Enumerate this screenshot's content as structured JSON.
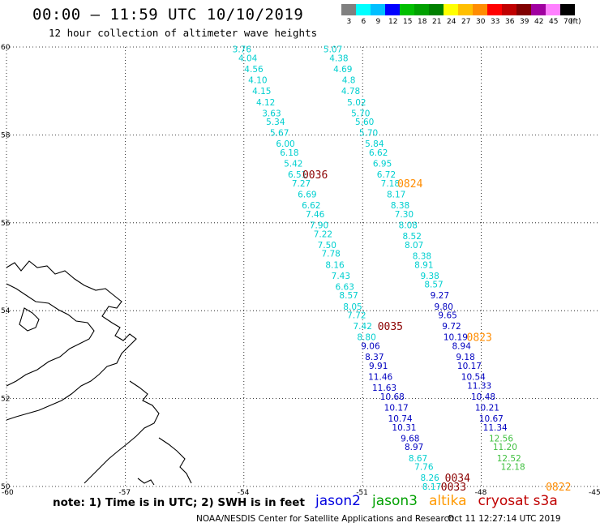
{
  "header": {
    "title": "00:00 – 11:59 UTC 10/10/2019",
    "subtitle": "12 hour collection of altimeter wave heights"
  },
  "color_scale": {
    "unit": "(ft)",
    "colors": [
      "#808080",
      "#00ffff",
      "#00bfff",
      "#0000ff",
      "#00bf00",
      "#00a000",
      "#008000",
      "#ffff00",
      "#ffbf00",
      "#ff8c00",
      "#ff0000",
      "#c00000",
      "#800000",
      "#a000a0",
      "#ff80ff",
      "#000000"
    ],
    "labels": [
      "3",
      "6",
      "9",
      "12",
      "15",
      "18",
      "21",
      "24",
      "27",
      "30",
      "33",
      "36",
      "39",
      "42",
      "45",
      "70"
    ]
  },
  "axes": {
    "lat_labels": [
      "60",
      "58",
      "56",
      "54",
      "52",
      "50"
    ],
    "lon_labels": [
      "-60",
      "-57",
      "-54",
      "-51",
      "-48",
      "-45"
    ]
  },
  "tracks": [
    {
      "color": "#00cfcf",
      "readings": [
        {
          "text": "3.76",
          "lat": 59.95,
          "lon": -54.05
        },
        {
          "text": "4.04",
          "lat": 59.75,
          "lon": -53.9
        },
        {
          "text": "4.56",
          "lat": 59.5,
          "lon": -53.75
        },
        {
          "text": "4.10",
          "lat": 59.25,
          "lon": -53.65
        },
        {
          "text": "4.15",
          "lat": 59.0,
          "lon": -53.55
        },
        {
          "text": "4.12",
          "lat": 58.75,
          "lon": -53.45
        },
        {
          "text": "3.63",
          "lat": 58.5,
          "lon": -53.3
        },
        {
          "text": "5.34",
          "lat": 58.3,
          "lon": -53.2
        },
        {
          "text": "5.67",
          "lat": 58.05,
          "lon": -53.1
        },
        {
          "text": "6.00",
          "lat": 57.8,
          "lon": -52.95
        },
        {
          "text": "6.18",
          "lat": 57.6,
          "lon": -52.85
        },
        {
          "text": "5.42",
          "lat": 57.35,
          "lon": -52.75
        },
        {
          "text": "6.51",
          "lat": 57.1,
          "lon": -52.65
        },
        {
          "text": "7.27",
          "lat": 56.9,
          "lon": -52.55
        },
        {
          "text": "6.69",
          "lat": 56.65,
          "lon": -52.4
        },
        {
          "text": "6.62",
          "lat": 56.4,
          "lon": -52.3
        },
        {
          "text": "7.46",
          "lat": 56.2,
          "lon": -52.2
        },
        {
          "text": "7.90",
          "lat": 55.95,
          "lon": -52.1
        },
        {
          "text": "7.22",
          "lat": 55.75,
          "lon": -52.0
        },
        {
          "text": "7.50",
          "lat": 55.5,
          "lon": -51.9
        },
        {
          "text": "7.78",
          "lat": 55.3,
          "lon": -51.8
        },
        {
          "text": "8.16",
          "lat": 55.05,
          "lon": -51.7
        },
        {
          "text": "7.43",
          "lat": 54.8,
          "lon": -51.55
        },
        {
          "text": "6.63",
          "lat": 54.55,
          "lon": -51.45
        },
        {
          "text": "8.57",
          "lat": 54.35,
          "lon": -51.35
        },
        {
          "text": "8.05",
          "lat": 54.1,
          "lon": -51.25
        },
        {
          "text": "7.72",
          "lat": 53.9,
          "lon": -51.15
        },
        {
          "text": "7.42",
          "lat": 53.65,
          "lon": -51.0
        },
        {
          "text": "8.80",
          "lat": 53.4,
          "lon": -50.9
        }
      ]
    },
    {
      "color": "#0000c0",
      "readings": [
        {
          "text": "9.06",
          "lat": 53.2,
          "lon": -50.8
        },
        {
          "text": "8.37",
          "lat": 52.95,
          "lon": -50.7
        },
        {
          "text": "9.91",
          "lat": 52.75,
          "lon": -50.6
        },
        {
          "text": "11.46",
          "lat": 52.5,
          "lon": -50.55
        },
        {
          "text": "11.63",
          "lat": 52.25,
          "lon": -50.45
        },
        {
          "text": "10.68",
          "lat": 52.05,
          "lon": -50.25
        },
        {
          "text": "10.17",
          "lat": 51.8,
          "lon": -50.15
        },
        {
          "text": "10.74",
          "lat": 51.55,
          "lon": -50.05
        },
        {
          "text": "10.31",
          "lat": 51.35,
          "lon": -49.95
        },
        {
          "text": "9.68",
          "lat": 51.1,
          "lon": -49.8
        },
        {
          "text": "8.97",
          "lat": 50.9,
          "lon": -49.7
        }
      ]
    },
    {
      "color": "#00cfcf",
      "readings": [
        {
          "text": "8.67",
          "lat": 50.65,
          "lon": -49.6
        },
        {
          "text": "7.76",
          "lat": 50.45,
          "lon": -49.45
        },
        {
          "text": "8.26",
          "lat": 50.2,
          "lon": -49.3
        },
        {
          "text": "8.17",
          "lat": 50.0,
          "lon": -49.25
        }
      ]
    },
    {
      "color": "#00cfcf",
      "readings": [
        {
          "text": "5.07",
          "lat": 59.95,
          "lon": -51.75
        },
        {
          "text": "4.38",
          "lat": 59.75,
          "lon": -51.6
        },
        {
          "text": "4.69",
          "lat": 59.5,
          "lon": -51.5
        },
        {
          "text": "4.8",
          "lat": 59.25,
          "lon": -51.35
        },
        {
          "text": "4.78",
          "lat": 59.0,
          "lon": -51.3
        },
        {
          "text": "5.02",
          "lat": 58.75,
          "lon": -51.15
        },
        {
          "text": "5.70",
          "lat": 58.5,
          "lon": -51.05
        },
        {
          "text": "5.60",
          "lat": 58.3,
          "lon": -50.95
        },
        {
          "text": "5.70",
          "lat": 58.05,
          "lon": -50.85
        },
        {
          "text": "5.84",
          "lat": 57.8,
          "lon": -50.7
        },
        {
          "text": "6.62",
          "lat": 57.6,
          "lon": -50.6
        },
        {
          "text": "6.95",
          "lat": 57.35,
          "lon": -50.5
        },
        {
          "text": "6.72",
          "lat": 57.1,
          "lon": -50.4
        },
        {
          "text": "7.18",
          "lat": 56.9,
          "lon": -50.3
        },
        {
          "text": "8.17",
          "lat": 56.65,
          "lon": -50.15
        },
        {
          "text": "8.38",
          "lat": 56.4,
          "lon": -50.05
        },
        {
          "text": "7.30",
          "lat": 56.2,
          "lon": -49.95
        },
        {
          "text": "8.08",
          "lat": 55.95,
          "lon": -49.85
        },
        {
          "text": "8.52",
          "lat": 55.7,
          "lon": -49.75
        },
        {
          "text": "8.07",
          "lat": 55.5,
          "lon": -49.7
        },
        {
          "text": "8.38",
          "lat": 55.25,
          "lon": -49.5
        },
        {
          "text": "8.91",
          "lat": 55.05,
          "lon": -49.45
        },
        {
          "text": "9.38",
          "lat": 54.8,
          "lon": -49.3
        },
        {
          "text": "8.57",
          "lat": 54.6,
          "lon": -49.2
        }
      ]
    },
    {
      "color": "#0000c0",
      "readings": [
        {
          "text": "9.27",
          "lat": 54.35,
          "lon": -49.05
        },
        {
          "text": "9.80",
          "lat": 54.1,
          "lon": -48.95
        },
        {
          "text": "9.65",
          "lat": 53.9,
          "lon": -48.85
        },
        {
          "text": "9.72",
          "lat": 53.65,
          "lon": -48.75
        },
        {
          "text": "10.19",
          "lat": 53.4,
          "lon": -48.65
        },
        {
          "text": "8.94",
          "lat": 53.2,
          "lon": -48.5
        },
        {
          "text": "9.18",
          "lat": 52.95,
          "lon": -48.4
        },
        {
          "text": "10.17",
          "lat": 52.75,
          "lon": -48.3
        },
        {
          "text": "10.54",
          "lat": 52.5,
          "lon": -48.2
        },
        {
          "text": "11.33",
          "lat": 52.3,
          "lon": -48.05
        },
        {
          "text": "10.48",
          "lat": 52.05,
          "lon": -47.95
        },
        {
          "text": "10.21",
          "lat": 51.8,
          "lon": -47.85
        },
        {
          "text": "10.67",
          "lat": 51.55,
          "lon": -47.75
        },
        {
          "text": "11.34",
          "lat": 51.35,
          "lon": -47.65
        }
      ]
    },
    {
      "color": "#40c040",
      "readings": [
        {
          "text": "12.56",
          "lat": 51.1,
          "lon": -47.5
        },
        {
          "text": "11.20",
          "lat": 50.9,
          "lon": -47.4
        },
        {
          "text": "12.52",
          "lat": 50.65,
          "lon": -47.3
        },
        {
          "text": "12.18",
          "lat": 50.45,
          "lon": -47.2
        }
      ]
    }
  ],
  "pass_times": [
    {
      "text": "0036",
      "color": "#8b0000",
      "lat": 57.1,
      "lon": -52.2
    },
    {
      "text": "0824",
      "color": "#ff8c00",
      "lat": 56.9,
      "lon": -49.8
    },
    {
      "text": "0035",
      "color": "#8b0000",
      "lat": 53.65,
      "lon": -50.3
    },
    {
      "text": "0823",
      "color": "#ff8c00",
      "lat": 53.4,
      "lon": -48.05
    },
    {
      "text": "0034",
      "color": "#8b0000",
      "lat": 50.2,
      "lon": -48.6
    },
    {
      "text": "0033",
      "color": "#8b0000",
      "lat": 50.0,
      "lon": -48.7
    },
    {
      "text": "0822",
      "color": "#ff8c00",
      "lat": 50.0,
      "lon": -46.05
    }
  ],
  "footer": {
    "note": "note: 1) Time is in UTC; 2) SWH is in feet",
    "satellites": [
      {
        "name": "jason2",
        "color": "#0000e0"
      },
      {
        "name": "jason3",
        "color": "#00a000"
      },
      {
        "name": "altika",
        "color": "#ff9900"
      },
      {
        "name": "cryosat s3a",
        "color": "#c00000"
      }
    ],
    "credit": "NOAA/NESDIS Center for Satellite Applications and Research",
    "timestamp": "Oct 11 12:27:14 UTC 2019"
  }
}
